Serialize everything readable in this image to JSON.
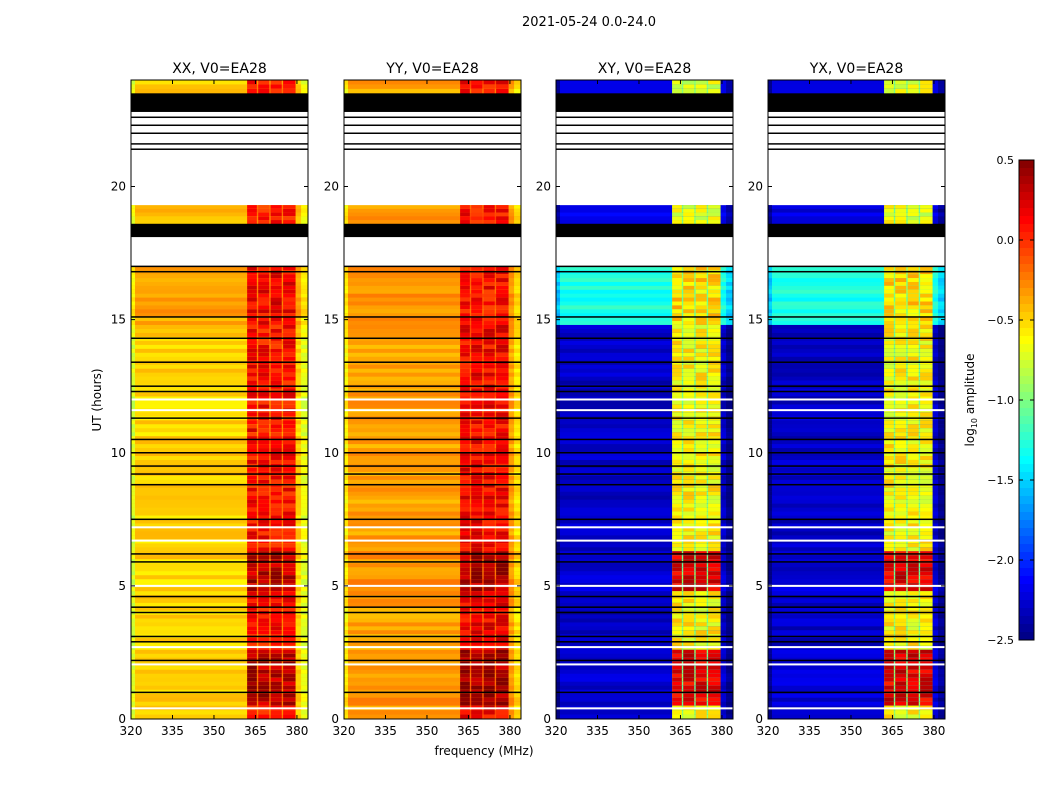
{
  "chart_data": {
    "type": "heatmap",
    "title": "2021-05-24 0.0-24.0",
    "xlabel": "frequency (MHz)",
    "ylabel": "UT (hours)",
    "xlim": [
      320,
      384
    ],
    "ylim": [
      0,
      24
    ],
    "xticks": [
      320,
      335,
      350,
      365,
      380
    ],
    "yticks": [
      0,
      5,
      10,
      15,
      20
    ],
    "colorbar": {
      "label_main": "log",
      "label_sub": "10",
      "label_rest": " amplitude",
      "range": [
        -2.5,
        0.5
      ],
      "ticks": [
        "0.5",
        "0.0",
        "−0.5",
        "−1.0",
        "−1.5",
        "−2.0",
        "−2.5"
      ],
      "tick_values": [
        0.5,
        0.0,
        -0.5,
        -1.0,
        -1.5,
        -2.0,
        -2.5
      ],
      "colormap": "jet"
    },
    "rfi_bands_mhz": [
      [
        362,
        365.5
      ],
      [
        366,
        370
      ],
      [
        370.5,
        374.5
      ],
      [
        375,
        379.5
      ]
    ],
    "time_segments": [
      {
        "range": [
          23.5,
          24
        ],
        "kind": "data",
        "region": "top"
      },
      {
        "range": [
          22.8,
          23.5
        ],
        "kind": "flagged"
      },
      {
        "range": [
          21.4,
          22.8
        ],
        "kind": "nodata"
      },
      {
        "range": [
          19.3,
          21.4
        ],
        "kind": "nodata"
      },
      {
        "range": [
          18.6,
          19.3
        ],
        "kind": "data",
        "region": "top"
      },
      {
        "range": [
          18.1,
          18.6
        ],
        "kind": "flagged"
      },
      {
        "range": [
          17.0,
          18.1
        ],
        "kind": "nodata"
      },
      {
        "range": [
          14.8,
          17.0
        ],
        "kind": "data",
        "region": "noisy"
      },
      {
        "range": [
          14.2,
          14.8
        ],
        "kind": "data",
        "region": "main"
      },
      {
        "range": [
          6.3,
          14.2
        ],
        "kind": "data",
        "region": "main"
      },
      {
        "range": [
          4.8,
          6.3
        ],
        "kind": "data",
        "region": "strong"
      },
      {
        "range": [
          2.6,
          4.8
        ],
        "kind": "data",
        "region": "main"
      },
      {
        "range": [
          0.5,
          2.6
        ],
        "kind": "data",
        "region": "strong"
      },
      {
        "range": [
          0,
          0.5
        ],
        "kind": "data",
        "region": "main"
      }
    ],
    "flag_lines_hours": [
      23.2,
      22.6,
      22.3,
      22.0,
      21.6,
      21.4,
      17.0,
      16.8,
      15.1,
      14.3,
      13.4,
      12.5,
      12.3,
      11.3,
      10.5,
      10.0,
      9.5,
      9.2,
      8.8,
      7.5,
      6.2,
      5.9,
      4.6,
      4.2,
      4.0,
      3.1,
      2.9,
      2.2,
      1.0
    ],
    "white_lines_hours": [
      12.0,
      11.6,
      7.2,
      6.7,
      5.0,
      2.7,
      2.05,
      0.4
    ],
    "panels": [
      {
        "title": "XX, V0=EA28",
        "base": {
          "top": -0.45,
          "noisy": -0.35,
          "main": -0.5,
          "strong": -0.5
        },
        "band": {
          "top": 0.05,
          "noisy": 0.15,
          "main": 0.1,
          "strong": 0.35
        },
        "gap": -0.25
      },
      {
        "title": "YY, V0=EA28",
        "base": {
          "top": -0.35,
          "noisy": -0.3,
          "main": -0.35,
          "strong": -0.3
        },
        "band": {
          "top": 0.1,
          "noisy": 0.1,
          "main": 0.15,
          "strong": 0.4
        },
        "gap": -0.15
      },
      {
        "title": "XY, V0=EA28",
        "base": {
          "top": -2.2,
          "noisy": -1.3,
          "main": -2.3,
          "strong": -2.25
        },
        "band": {
          "top": -0.7,
          "noisy": -0.5,
          "main": -0.6,
          "strong": 0.2
        },
        "gap": -1.0
      },
      {
        "title": "YX, V0=EA28",
        "base": {
          "top": -2.2,
          "noisy": -1.3,
          "main": -2.3,
          "strong": -2.25
        },
        "band": {
          "top": -0.7,
          "noisy": -0.5,
          "main": -0.6,
          "strong": 0.2
        },
        "gap": -1.0
      }
    ]
  }
}
